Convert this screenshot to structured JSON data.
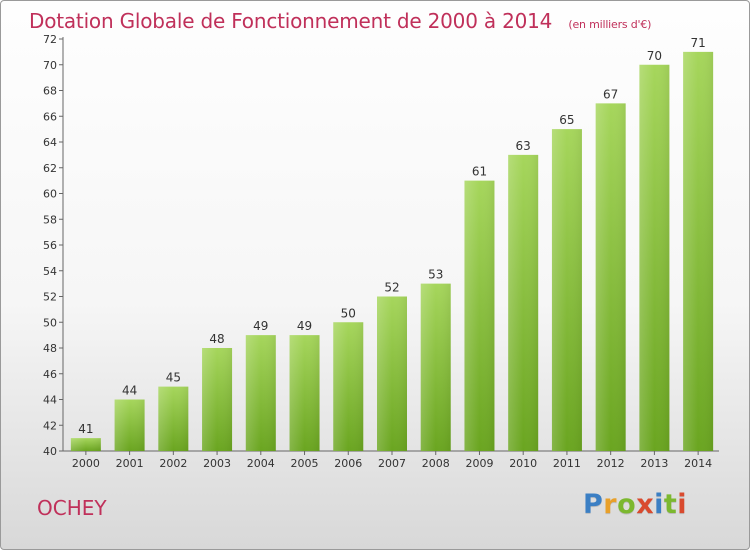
{
  "header": {
    "title": "Dotation Globale de Fonctionnement de 2000 à 2014",
    "unit": "(en milliers d'€)"
  },
  "footer": {
    "commune": "OCHEY",
    "brand_letters": [
      "P",
      "r",
      "o",
      "x",
      "i",
      "t",
      "i"
    ],
    "brand_colors": [
      "#3b7fc4",
      "#e8a02a",
      "#7cb82f",
      "#d94a2e",
      "#3b7fc4",
      "#7cb82f",
      "#d94a2e"
    ]
  },
  "colors": {
    "bar_light": "#a6d65c",
    "bar_dark": "#6aa520",
    "axis_text": "#333333",
    "grid": "#d0d0d0",
    "title": "#c0305a"
  },
  "chart_data": {
    "type": "bar",
    "categories": [
      "2000",
      "2001",
      "2002",
      "2003",
      "2004",
      "2005",
      "2006",
      "2007",
      "2008",
      "2009",
      "2010",
      "2011",
      "2012",
      "2013",
      "2014"
    ],
    "values": [
      41,
      44,
      45,
      48,
      49,
      49,
      50,
      52,
      53,
      61,
      63,
      65,
      67,
      70,
      71
    ],
    "ylim": [
      40,
      72
    ],
    "yticks": [
      40,
      42,
      44,
      46,
      48,
      50,
      52,
      54,
      56,
      58,
      60,
      62,
      64,
      66,
      68,
      70,
      72
    ],
    "grid": false,
    "data_labels": true
  }
}
